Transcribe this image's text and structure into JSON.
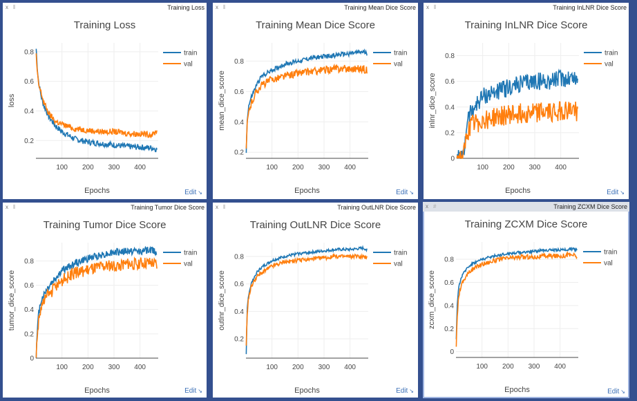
{
  "edit_label": "Edit",
  "colors": {
    "train": "#1f77b4",
    "val": "#ff7f0e",
    "background": "#34508f"
  },
  "panes": [
    {
      "window_title": "Training Loss",
      "chart_data": {
        "type": "line",
        "title": "Training Loss",
        "xlabel": "Epochs",
        "ylabel": "loss",
        "xlim": [
          0,
          470
        ],
        "ylim": [
          0.08,
          0.86
        ],
        "xticks": [
          100,
          200,
          300,
          400
        ],
        "xtick_labels": [
          "100",
          "200",
          "300",
          "400"
        ],
        "yticks": [
          0.2,
          0.4,
          0.6,
          0.8
        ],
        "ytick_labels": [
          "0.2",
          "0.4",
          "0.6",
          "0.8"
        ],
        "legend": "top-right",
        "series": [
          {
            "name": "train",
            "points": [
              [
                1,
                0.82
              ],
              [
                5,
                0.7
              ],
              [
                10,
                0.6
              ],
              [
                20,
                0.5
              ],
              [
                30,
                0.44
              ],
              [
                50,
                0.36
              ],
              [
                75,
                0.3
              ],
              [
                100,
                0.26
              ],
              [
                150,
                0.21
              ],
              [
                200,
                0.19
              ],
              [
                250,
                0.18
              ],
              [
                300,
                0.17
              ],
              [
                350,
                0.16
              ],
              [
                400,
                0.155
              ],
              [
                450,
                0.15
              ],
              [
                465,
                0.14
              ]
            ],
            "noise": 0.02
          },
          {
            "name": "val",
            "points": [
              [
                1,
                0.78
              ],
              [
                5,
                0.66
              ],
              [
                10,
                0.58
              ],
              [
                20,
                0.52
              ],
              [
                30,
                0.46
              ],
              [
                50,
                0.38
              ],
              [
                75,
                0.33
              ],
              [
                100,
                0.31
              ],
              [
                150,
                0.28
              ],
              [
                200,
                0.27
              ],
              [
                250,
                0.26
              ],
              [
                300,
                0.26
              ],
              [
                350,
                0.25
              ],
              [
                400,
                0.245
              ],
              [
                450,
                0.24
              ],
              [
                465,
                0.27
              ]
            ],
            "noise": 0.02
          }
        ]
      }
    },
    {
      "window_title": "Training Mean Dice Score",
      "chart_data": {
        "type": "line",
        "title": "Training Mean Dice Score",
        "xlabel": "Epochs",
        "ylabel": "mean_dice_score",
        "xlim": [
          0,
          470
        ],
        "ylim": [
          0.16,
          0.92
        ],
        "xticks": [
          100,
          200,
          300,
          400
        ],
        "xtick_labels": [
          "100",
          "200",
          "300",
          "400"
        ],
        "yticks": [
          0.2,
          0.4,
          0.6,
          0.8
        ],
        "ytick_labels": [
          "0.2",
          "0.4",
          "0.6",
          "0.8"
        ],
        "legend": "top-right",
        "series": [
          {
            "name": "train",
            "points": [
              [
                1,
                0.2
              ],
              [
                5,
                0.42
              ],
              [
                10,
                0.5
              ],
              [
                20,
                0.56
              ],
              [
                40,
                0.64
              ],
              [
                60,
                0.7
              ],
              [
                100,
                0.74
              ],
              [
                150,
                0.78
              ],
              [
                200,
                0.8
              ],
              [
                250,
                0.82
              ],
              [
                300,
                0.83
              ],
              [
                350,
                0.84
              ],
              [
                400,
                0.85
              ],
              [
                450,
                0.86
              ],
              [
                465,
                0.85
              ]
            ],
            "noise": 0.015
          },
          {
            "name": "val",
            "points": [
              [
                1,
                0.22
              ],
              [
                5,
                0.38
              ],
              [
                10,
                0.46
              ],
              [
                20,
                0.52
              ],
              [
                40,
                0.6
              ],
              [
                60,
                0.64
              ],
              [
                100,
                0.68
              ],
              [
                150,
                0.7
              ],
              [
                200,
                0.72
              ],
              [
                250,
                0.73
              ],
              [
                300,
                0.74
              ],
              [
                350,
                0.75
              ],
              [
                400,
                0.75
              ],
              [
                450,
                0.75
              ],
              [
                465,
                0.74
              ]
            ],
            "noise": 0.025
          }
        ]
      }
    },
    {
      "window_title": "Training InLNR Dice Score",
      "chart_data": {
        "type": "line",
        "title": "Training InLNR Dice Score",
        "xlabel": "Epochs",
        "ylabel": "inlnr_dice_score",
        "xlim": [
          0,
          470
        ],
        "ylim": [
          0,
          0.9
        ],
        "xticks": [
          100,
          200,
          300,
          400
        ],
        "xtick_labels": [
          "100",
          "200",
          "300",
          "400"
        ],
        "yticks": [
          0,
          0.2,
          0.4,
          0.6,
          0.8
        ],
        "ytick_labels": [
          "0",
          "0.2",
          "0.4",
          "0.6",
          "0.8"
        ],
        "legend": "top-right",
        "series": [
          {
            "name": "train",
            "points": [
              [
                1,
                0
              ],
              [
                25,
                0
              ],
              [
                30,
                0.08
              ],
              [
                40,
                0.3
              ],
              [
                60,
                0.38
              ],
              [
                100,
                0.48
              ],
              [
                150,
                0.52
              ],
              [
                200,
                0.55
              ],
              [
                250,
                0.58
              ],
              [
                300,
                0.6
              ],
              [
                350,
                0.6
              ],
              [
                400,
                0.62
              ],
              [
                450,
                0.63
              ],
              [
                465,
                0.6
              ]
            ],
            "noise": 0.07
          },
          {
            "name": "val",
            "points": [
              [
                1,
                0
              ],
              [
                25,
                0
              ],
              [
                30,
                0.05
              ],
              [
                40,
                0.2
              ],
              [
                60,
                0.26
              ],
              [
                100,
                0.3
              ],
              [
                150,
                0.32
              ],
              [
                200,
                0.34
              ],
              [
                250,
                0.35
              ],
              [
                300,
                0.36
              ],
              [
                350,
                0.36
              ],
              [
                400,
                0.37
              ],
              [
                450,
                0.38
              ],
              [
                465,
                0.36
              ]
            ],
            "noise": 0.08
          }
        ]
      }
    },
    {
      "window_title": "Training Tumor Dice Score",
      "chart_data": {
        "type": "line",
        "title": "Training Tumor Dice Score",
        "xlabel": "Epochs",
        "ylabel": "tumor_dice_score",
        "xlim": [
          0,
          470
        ],
        "ylim": [
          0,
          0.95
        ],
        "xticks": [
          100,
          200,
          300,
          400
        ],
        "xtick_labels": [
          "100",
          "200",
          "300",
          "400"
        ],
        "yticks": [
          0,
          0.2,
          0.4,
          0.6,
          0.8
        ],
        "ytick_labels": [
          "0",
          "0.2",
          "0.4",
          "0.6",
          "0.8"
        ],
        "legend": "top-right",
        "series": [
          {
            "name": "train",
            "points": [
              [
                1,
                0.02
              ],
              [
                5,
                0.2
              ],
              [
                10,
                0.36
              ],
              [
                20,
                0.48
              ],
              [
                40,
                0.56
              ],
              [
                60,
                0.62
              ],
              [
                100,
                0.72
              ],
              [
                150,
                0.78
              ],
              [
                200,
                0.82
              ],
              [
                250,
                0.85
              ],
              [
                300,
                0.87
              ],
              [
                350,
                0.88
              ],
              [
                400,
                0.88
              ],
              [
                450,
                0.89
              ],
              [
                465,
                0.87
              ]
            ],
            "noise": 0.03
          },
          {
            "name": "val",
            "points": [
              [
                1,
                0.02
              ],
              [
                5,
                0.18
              ],
              [
                10,
                0.3
              ],
              [
                20,
                0.42
              ],
              [
                40,
                0.5
              ],
              [
                60,
                0.55
              ],
              [
                100,
                0.64
              ],
              [
                150,
                0.7
              ],
              [
                200,
                0.73
              ],
              [
                250,
                0.75
              ],
              [
                300,
                0.76
              ],
              [
                350,
                0.77
              ],
              [
                400,
                0.78
              ],
              [
                450,
                0.78
              ],
              [
                465,
                0.76
              ]
            ],
            "noise": 0.05
          }
        ]
      }
    },
    {
      "window_title": "Training OutLNR Dice Score",
      "chart_data": {
        "type": "line",
        "title": "Training OutLNR Dice Score",
        "xlabel": "Epochs",
        "ylabel": "outlnr_dice_score",
        "xlim": [
          0,
          470
        ],
        "ylim": [
          0.06,
          0.9
        ],
        "xticks": [
          100,
          200,
          300,
          400
        ],
        "xtick_labels": [
          "100",
          "200",
          "300",
          "400"
        ],
        "yticks": [
          0.2,
          0.4,
          0.6,
          0.8
        ],
        "ytick_labels": [
          "0.2",
          "0.4",
          "0.6",
          "0.8"
        ],
        "legend": "top-right",
        "series": [
          {
            "name": "train",
            "points": [
              [
                1,
                0.08
              ],
              [
                5,
                0.42
              ],
              [
                10,
                0.52
              ],
              [
                20,
                0.6
              ],
              [
                40,
                0.68
              ],
              [
                60,
                0.72
              ],
              [
                100,
                0.77
              ],
              [
                150,
                0.8
              ],
              [
                200,
                0.82
              ],
              [
                250,
                0.83
              ],
              [
                300,
                0.84
              ],
              [
                350,
                0.85
              ],
              [
                400,
                0.85
              ],
              [
                450,
                0.86
              ],
              [
                465,
                0.85
              ]
            ],
            "noise": 0.01
          },
          {
            "name": "val",
            "points": [
              [
                1,
                0.16
              ],
              [
                5,
                0.38
              ],
              [
                10,
                0.5
              ],
              [
                20,
                0.58
              ],
              [
                40,
                0.65
              ],
              [
                60,
                0.68
              ],
              [
                100,
                0.73
              ],
              [
                150,
                0.76
              ],
              [
                200,
                0.77
              ],
              [
                250,
                0.78
              ],
              [
                300,
                0.79
              ],
              [
                350,
                0.8
              ],
              [
                400,
                0.8
              ],
              [
                450,
                0.8
              ],
              [
                465,
                0.79
              ]
            ],
            "noise": 0.015
          }
        ]
      }
    },
    {
      "window_title": "Training ZCXM Dice Score",
      "chart_data": {
        "type": "line",
        "title": "Training ZCXM Dice Score",
        "xlabel": "Epochs",
        "ylabel": "zcxm_dice_score",
        "xlim": [
          0,
          470
        ],
        "ylim": [
          -0.05,
          0.95
        ],
        "xticks": [
          100,
          200,
          300,
          400
        ],
        "xtick_labels": [
          "100",
          "200",
          "300",
          "400"
        ],
        "yticks": [
          0,
          0.2,
          0.4,
          0.6,
          0.8
        ],
        "ytick_labels": [
          "0",
          "0.2",
          "0.4",
          "0.6",
          "0.8"
        ],
        "legend": "top-right",
        "series": [
          {
            "name": "train",
            "points": [
              [
                1,
                0.1
              ],
              [
                5,
                0.4
              ],
              [
                10,
                0.56
              ],
              [
                20,
                0.64
              ],
              [
                40,
                0.72
              ],
              [
                60,
                0.76
              ],
              [
                100,
                0.8
              ],
              [
                150,
                0.83
              ],
              [
                200,
                0.85
              ],
              [
                250,
                0.86
              ],
              [
                300,
                0.87
              ],
              [
                350,
                0.88
              ],
              [
                400,
                0.88
              ],
              [
                450,
                0.89
              ],
              [
                465,
                0.88
              ]
            ],
            "noise": 0.012
          },
          {
            "name": "val",
            "points": [
              [
                1,
                0.06
              ],
              [
                5,
                0.3
              ],
              [
                10,
                0.48
              ],
              [
                20,
                0.58
              ],
              [
                40,
                0.66
              ],
              [
                60,
                0.71
              ],
              [
                100,
                0.76
              ],
              [
                150,
                0.79
              ],
              [
                200,
                0.81
              ],
              [
                250,
                0.82
              ],
              [
                300,
                0.82
              ],
              [
                350,
                0.83
              ],
              [
                400,
                0.83
              ],
              [
                450,
                0.84
              ],
              [
                465,
                0.82
              ]
            ],
            "noise": 0.02
          }
        ]
      }
    }
  ]
}
